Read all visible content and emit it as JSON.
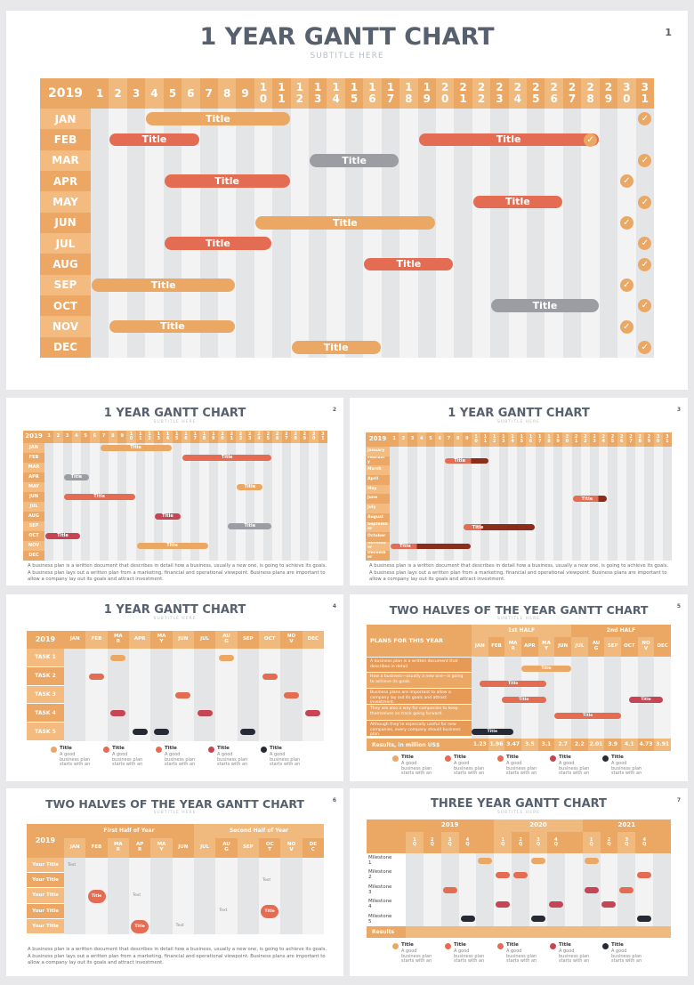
{
  "theme": {
    "orange": "#eba864",
    "light_orange": "#f3bb80",
    "red": "#e36c52",
    "gray": "#9c9da2",
    "crimson": "#c64554",
    "dark": "#262a34",
    "maroon": "#8b2d1a"
  },
  "slide1": {
    "title": "1 YEAR GANTT CHART",
    "subtitle": "SUBTITLE HERE",
    "page": "1",
    "year": "2019",
    "days": [
      "1",
      "2",
      "3",
      "4",
      "5",
      "6",
      "7",
      "8",
      "9",
      "1\n0",
      "1\n1",
      "1\n2",
      "1\n3",
      "1\n4",
      "1\n5",
      "1\n6",
      "1\n7",
      "1\n8",
      "1\n9",
      "2\n0",
      "2\n1",
      "2\n2",
      "2\n3",
      "2\n4",
      "2\n5",
      "2\n6",
      "2\n7",
      "2\n8",
      "2\n9",
      "3\n0",
      "3\n1"
    ],
    "months": [
      "JAN",
      "FEB",
      "MAR",
      "APR",
      "MAY",
      "JUN",
      "JUL",
      "AUG",
      "SEP",
      "OCT",
      "NOV",
      "DEC"
    ],
    "bars": [
      {
        "row": 0,
        "start": 4,
        "end": 11,
        "label": "Title",
        "color": "orange"
      },
      {
        "row": 1,
        "start": 2,
        "end": 6,
        "label": "Title",
        "color": "red"
      },
      {
        "row": 1,
        "start": 19,
        "end": 28,
        "label": "Title",
        "color": "red"
      },
      {
        "row": 2,
        "start": 13,
        "end": 17,
        "label": "Title",
        "color": "gray"
      },
      {
        "row": 3,
        "start": 5,
        "end": 11,
        "label": "Title",
        "color": "red"
      },
      {
        "row": 4,
        "start": 22,
        "end": 26,
        "label": "Title",
        "color": "red"
      },
      {
        "row": 5,
        "start": 10,
        "end": 19,
        "label": "Title",
        "color": "orange"
      },
      {
        "row": 6,
        "start": 5,
        "end": 10,
        "label": "Title",
        "color": "red"
      },
      {
        "row": 7,
        "start": 16,
        "end": 20,
        "label": "Title",
        "color": "red"
      },
      {
        "row": 8,
        "start": 1,
        "end": 8,
        "label": "Title",
        "color": "orange"
      },
      {
        "row": 9,
        "start": 23,
        "end": 28,
        "label": "Title",
        "color": "gray"
      },
      {
        "row": 10,
        "start": 2,
        "end": 8,
        "label": "Title",
        "color": "orange"
      },
      {
        "row": 11,
        "start": 12,
        "end": 16,
        "label": "Title",
        "color": "orange"
      }
    ],
    "checks": [
      {
        "row": 0,
        "col": 31
      },
      {
        "row": 1,
        "col": 28
      },
      {
        "row": 2,
        "col": 31
      },
      {
        "row": 3,
        "col": 30
      },
      {
        "row": 4,
        "col": 31
      },
      {
        "row": 5,
        "col": 30
      },
      {
        "row": 6,
        "col": 31
      },
      {
        "row": 7,
        "col": 31
      },
      {
        "row": 8,
        "col": 30
      },
      {
        "row": 9,
        "col": 31
      },
      {
        "row": 10,
        "col": 30
      },
      {
        "row": 11,
        "col": 31
      }
    ]
  },
  "slide2": {
    "title": "1 YEAR GANTT CHART",
    "subtitle": "SUBTITLE HERE",
    "page": "2",
    "year": "2019",
    "months": [
      "JAN",
      "FEB",
      "MAR",
      "APR",
      "MAY",
      "JUN",
      "JUL",
      "AUG",
      "SEP",
      "OCT",
      "NOV",
      "DEC"
    ],
    "bars": [
      {
        "row": 0,
        "start": 7,
        "end": 14,
        "label": "Title",
        "color": "orange"
      },
      {
        "row": 1,
        "start": 16,
        "end": 25,
        "label": "Title",
        "color": "red"
      },
      {
        "row": 3,
        "start": 3,
        "end": 5,
        "label": "Title",
        "color": "gray"
      },
      {
        "row": 4,
        "start": 22,
        "end": 24,
        "label": "Title",
        "color": "orange"
      },
      {
        "row": 5,
        "start": 3,
        "end": 10,
        "label": "Title",
        "color": "red"
      },
      {
        "row": 7,
        "start": 13,
        "end": 15,
        "label": "Title",
        "color": "crimson"
      },
      {
        "row": 8,
        "start": 21,
        "end": 25,
        "label": "Title",
        "color": "gray"
      },
      {
        "row": 9,
        "start": 1,
        "end": 4,
        "label": "Title",
        "color": "crimson"
      },
      {
        "row": 10,
        "start": 11,
        "end": 18,
        "label": "Title",
        "color": "orange"
      }
    ],
    "paragraph": "A business plan is a written document that describes in detail how a business, usually a new one, is going to achieve its goals. A business plan lays out a written plan from a marketing, financial and operational viewpoint. Business plans are important to allow a company lay out its goals and attract investment."
  },
  "slide3": {
    "title": "1 YEAR GANTT CHART",
    "subtitle": "SUBTITLE HERE",
    "page": "3",
    "year": "2019",
    "months": [
      "January",
      "Februar\ny",
      "March",
      "April",
      "May",
      "June",
      "July",
      "August",
      "Septemb\ner",
      "October",
      "Novemb\ner",
      "Decemb\ner"
    ],
    "bars": [
      {
        "row": 1,
        "start": 7,
        "end": 11,
        "dark_from": 10,
        "label": "Title"
      },
      {
        "row": 5,
        "start": 21,
        "end": 24,
        "dark_from": 24,
        "label": "Title"
      },
      {
        "row": 8,
        "start": 9,
        "end": 16,
        "dark_from": 11,
        "label": "Title"
      },
      {
        "row": 10,
        "start": 1,
        "end": 9,
        "dark_from": 4,
        "label": "Title"
      }
    ],
    "paragraph": "A business plan is a written document that describes in detail how a business, usually a new one, is going to achieve its goals. A business plan lays out a written plan from a marketing, financial and operational viewpoint. Business plans are important to allow a company lay out its goals and attract investment."
  },
  "slide4": {
    "title": "1 YEAR GANTT CHART",
    "subtitle": "SUBTITLE HERE",
    "page": "4",
    "year": "2019",
    "months": [
      "JAN",
      "FEB",
      "MA\nR",
      "APR",
      "MA\nY",
      "JUN",
      "JUL",
      "AU\nG",
      "SEP",
      "OCT",
      "NO\nV",
      "DEC"
    ],
    "tasks": [
      "TASK 1",
      "TASK 2",
      "TASK 3",
      "TASK 4",
      "TASK 5"
    ],
    "pills": [
      {
        "row": 0,
        "col": 2,
        "color": "orange"
      },
      {
        "row": 0,
        "col": 7,
        "color": "orange"
      },
      {
        "row": 1,
        "col": 1,
        "color": "red"
      },
      {
        "row": 1,
        "col": 9,
        "color": "red"
      },
      {
        "row": 2,
        "col": 5,
        "color": "red"
      },
      {
        "row": 2,
        "col": 10,
        "color": "red"
      },
      {
        "row": 3,
        "col": 2,
        "color": "crimson"
      },
      {
        "row": 3,
        "col": 6,
        "color": "crimson"
      },
      {
        "row": 3,
        "col": 11,
        "color": "crimson"
      },
      {
        "row": 4,
        "col": 3,
        "color": "dark"
      },
      {
        "row": 4,
        "col": 4,
        "color": "dark"
      },
      {
        "row": 4,
        "col": 8,
        "color": "dark"
      }
    ],
    "legend": [
      {
        "title": "Title",
        "text": "A good business plan starts with an",
        "color": "orange"
      },
      {
        "title": "Title",
        "text": "A good business plan starts with an",
        "color": "red"
      },
      {
        "title": "Title",
        "text": "A good business plan starts with an",
        "color": "red"
      },
      {
        "title": "Title",
        "text": "A good business plan starts with an",
        "color": "crimson"
      },
      {
        "title": "Title",
        "text": "A good business plan starts with an",
        "color": "dark"
      }
    ]
  },
  "slide5": {
    "title": "TWO HALVES OF THE YEAR GANTT CHART",
    "subtitle": "SUBTITLE HERE",
    "page": "5",
    "plans_header": "PLANS FOR THIS YEAR",
    "half1": "1st HALF",
    "half2": "2nd HALF",
    "months": [
      "JAN",
      "FEB",
      "MA\nR",
      "APR",
      "MA\nY",
      "JUN",
      "JUL",
      "AU\nG",
      "SEP",
      "OCT",
      "NO\nV",
      "DEC"
    ],
    "plans": [
      "A business plan is a written document that describes in detail",
      "How a business—usually a new one—is going to achieve its goals.",
      "Business plans are important to allow a company lay out its goals and attract investment.",
      "They are also a way for companies to keep themselves on track going forward.",
      "Although they're especially useful for new companies, every company should business plan."
    ],
    "bars": [
      {
        "row": 0,
        "start": 3,
        "end": 6,
        "label": "Title",
        "color": "orange"
      },
      {
        "row": 1,
        "start": 0.5,
        "end": 4.5,
        "label": "Title",
        "color": "red"
      },
      {
        "row": 2,
        "start": 1.8,
        "end": 4.5,
        "label": "Title",
        "color": "red"
      },
      {
        "row": 2,
        "start": 9.5,
        "end": 11.5,
        "label": "Title",
        "color": "crimson"
      },
      {
        "row": 3,
        "start": 5,
        "end": 9,
        "label": "Title",
        "color": "red"
      },
      {
        "row": 4,
        "start": 0,
        "end": 2.5,
        "label": "Title",
        "color": "dark"
      }
    ],
    "results_label": "Results, in million US$",
    "results": [
      "1.23",
      "1.96",
      "3.47",
      "3.5",
      "3.1",
      "2.7",
      "2.2",
      "2.01",
      "3.9",
      "4.1",
      "4.73",
      "3.91"
    ],
    "legend": [
      {
        "title": "Title",
        "text": "A good business plan starts with an",
        "color": "orange"
      },
      {
        "title": "Title",
        "text": "A good business plan starts with an",
        "color": "red"
      },
      {
        "title": "Title",
        "text": "A good business plan starts with an",
        "color": "red"
      },
      {
        "title": "Title",
        "text": "A good business plan starts with an",
        "color": "crimson"
      },
      {
        "title": "Title",
        "text": "A good business plan starts with an",
        "color": "dark"
      }
    ]
  },
  "slide6": {
    "title": "TWO HALVES OF THE YEAR GANTT CHART",
    "subtitle": "SUBTITLE HERE",
    "page": "6",
    "year": "2019",
    "half1": "First Half of Year",
    "half2": "Second Half of Year",
    "months": [
      "JAN",
      "FEB",
      "MA\nR",
      "AP\nR",
      "MA\nY",
      "JUN",
      "JUL",
      "AU\nG",
      "SEP",
      "OC\nT",
      "NO\nV",
      "DE\nC"
    ],
    "rows": [
      "Your Title",
      "Your Title",
      "Your Title",
      "Your Title",
      "Your Title"
    ],
    "texts": [
      {
        "row": 0,
        "col": 0,
        "t": "Text"
      },
      {
        "row": 1,
        "col": 9,
        "t": "Text"
      },
      {
        "row": 2,
        "col": 3,
        "t": "Text"
      },
      {
        "row": 3,
        "col": 7,
        "t": "Text"
      },
      {
        "row": 4,
        "col": 5,
        "t": "Text"
      }
    ],
    "circles": [
      {
        "row": 2,
        "col": 1,
        "t": "Title",
        "color": "red"
      },
      {
        "row": 3,
        "col": 9,
        "t": "Title",
        "color": "red"
      },
      {
        "row": 4,
        "col": 3,
        "t": "Title",
        "color": "red"
      }
    ],
    "paragraph": "A business plan is a written document that describes in detail how a business, usually a new one, is going to achieve its goals. A business plan lays out a written plan from a marketing, financial and operational viewpoint. Business plans are important to allow a company lay out its goals and attract investment."
  },
  "slide7": {
    "title": "THREE YEAR GANTT CHART",
    "subtitle": "SUBTITLE HERE",
    "page": "7",
    "years": [
      "2019",
      "2020",
      "2021"
    ],
    "quarters": [
      "1\nQ",
      "2\nQ",
      "3\nQ",
      "4\nQ",
      "1\nQ",
      "2\nQ",
      "3\nQ",
      "4\nQ",
      "1\nQ",
      "2\nQ",
      "3\nQ",
      "4\nQ"
    ],
    "milestones": [
      "Milestone\n1",
      "Milestone\n2",
      "Milestone\n3",
      "Milestone\n4",
      "Milestone\n5"
    ],
    "pills": [
      {
        "row": 0,
        "col": 4,
        "color": "orange"
      },
      {
        "row": 0,
        "col": 7,
        "color": "orange"
      },
      {
        "row": 0,
        "col": 10,
        "color": "orange"
      },
      {
        "row": 1,
        "col": 5,
        "color": "red"
      },
      {
        "row": 1,
        "col": 6,
        "color": "red"
      },
      {
        "row": 1,
        "col": 13,
        "color": "red"
      },
      {
        "row": 2,
        "col": 2,
        "color": "red"
      },
      {
        "row": 2,
        "col": 10,
        "color": "crimson"
      },
      {
        "row": 2,
        "col": 12,
        "color": "red"
      },
      {
        "row": 3,
        "col": 5,
        "color": "crimson"
      },
      {
        "row": 3,
        "col": 8,
        "color": "crimson"
      },
      {
        "row": 3,
        "col": 11,
        "color": "crimson"
      },
      {
        "row": 4,
        "col": 3,
        "color": "dark"
      },
      {
        "row": 4,
        "col": 7,
        "color": "dark"
      },
      {
        "row": 4,
        "col": 13,
        "color": "dark"
      }
    ],
    "results_label": "Results",
    "legend": [
      {
        "title": "Title",
        "text": "A good business plan starts with an",
        "color": "orange"
      },
      {
        "title": "Title",
        "text": "A good business plan starts with an",
        "color": "red"
      },
      {
        "title": "Title",
        "text": "A good business plan starts with an",
        "color": "red"
      },
      {
        "title": "Title",
        "text": "A good business plan starts with an",
        "color": "crimson"
      },
      {
        "title": "Title",
        "text": "A good business plan starts with an",
        "color": "dark"
      }
    ]
  }
}
